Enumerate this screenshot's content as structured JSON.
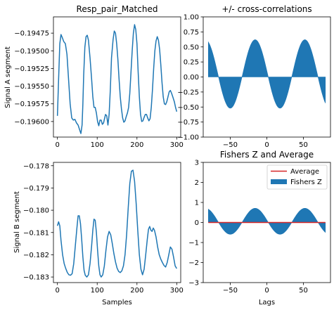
{
  "chart_data": [
    {
      "panel": "top-left",
      "type": "line",
      "title": "Resp_pair_Matched",
      "xlabel": "",
      "ylabel": "Signal A segment",
      "xlim": [
        -10,
        310
      ],
      "ylim": [
        -0.19622,
        -0.19452
      ],
      "xticks": [
        0,
        100,
        200,
        300
      ],
      "yticks": [
        -0.19475,
        -0.195,
        -0.19525,
        -0.1955,
        -0.19575,
        -0.196
      ],
      "ytick_labels": [
        "−0.19475",
        "−0.19500",
        "−0.19525",
        "−0.19550",
        "−0.19575",
        "−0.19600"
      ],
      "grid": false,
      "series": [
        {
          "color": "#1f77b4",
          "points": [
            [
              0,
              -0.19592
            ],
            [
              3,
              -0.1954
            ],
            [
              6,
              -0.1949
            ],
            [
              9,
              -0.19477
            ],
            [
              12,
              -0.19481
            ],
            [
              16,
              -0.19487
            ],
            [
              20,
              -0.1949
            ],
            [
              24,
              -0.19505
            ],
            [
              28,
              -0.1954
            ],
            [
              32,
              -0.19575
            ],
            [
              36,
              -0.19595
            ],
            [
              40,
              -0.19598
            ],
            [
              44,
              -0.19597
            ],
            [
              48,
              -0.19602
            ],
            [
              52,
              -0.19605
            ],
            [
              56,
              -0.19612
            ],
            [
              59,
              -0.19617
            ],
            [
              62,
              -0.19605
            ],
            [
              64,
              -0.19575
            ],
            [
              66,
              -0.19535
            ],
            [
              69,
              -0.19495
            ],
            [
              72,
              -0.1948
            ],
            [
              75,
              -0.19478
            ],
            [
              78,
              -0.19485
            ],
            [
              82,
              -0.1951
            ],
            [
              86,
              -0.1954
            ],
            [
              89,
              -0.19565
            ],
            [
              92,
              -0.1958
            ],
            [
              95,
              -0.1958
            ],
            [
              98,
              -0.19588
            ],
            [
              101,
              -0.196
            ],
            [
              104,
              -0.19606
            ],
            [
              107,
              -0.19598
            ],
            [
              110,
              -0.19598
            ],
            [
              113,
              -0.19604
            ],
            [
              116,
              -0.19602
            ],
            [
              118,
              -0.19597
            ],
            [
              121,
              -0.1959
            ],
            [
              124,
              -0.19592
            ],
            [
              127,
              -0.19605
            ],
            [
              130,
              -0.1959
            ],
            [
              133,
              -0.19555
            ],
            [
              136,
              -0.1951
            ],
            [
              140,
              -0.19484
            ],
            [
              143,
              -0.19472
            ],
            [
              146,
              -0.19475
            ],
            [
              149,
              -0.1949
            ],
            [
              152,
              -0.19512
            ],
            [
              155,
              -0.1954
            ],
            [
              158,
              -0.19565
            ],
            [
              161,
              -0.19582
            ],
            [
              164,
              -0.19595
            ],
            [
              167,
              -0.19601
            ],
            [
              170,
              -0.19599
            ],
            [
              173,
              -0.19593
            ],
            [
              176,
              -0.19588
            ],
            [
              179,
              -0.1958
            ],
            [
              182,
              -0.1956
            ],
            [
              185,
              -0.1953
            ],
            [
              188,
              -0.195
            ],
            [
              191,
              -0.19475
            ],
            [
              194,
              -0.19463
            ],
            [
              197,
              -0.1947
            ],
            [
              200,
              -0.1949
            ],
            [
              203,
              -0.1953
            ],
            [
              206,
              -0.19565
            ],
            [
              209,
              -0.1959
            ],
            [
              212,
              -0.196
            ],
            [
              215,
              -0.19599
            ],
            [
              218,
              -0.19594
            ],
            [
              221,
              -0.1959
            ],
            [
              224,
              -0.1959
            ],
            [
              227,
              -0.19595
            ],
            [
              230,
              -0.19599
            ],
            [
              233,
              -0.19596
            ],
            [
              236,
              -0.1958
            ],
            [
              239,
              -0.19555
            ],
            [
              242,
              -0.19525
            ],
            [
              245,
              -0.195
            ],
            [
              248,
              -0.19486
            ],
            [
              251,
              -0.1948
            ],
            [
              254,
              -0.19485
            ],
            [
              257,
              -0.19498
            ],
            [
              260,
              -0.1952
            ],
            [
              263,
              -0.19545
            ],
            [
              266,
              -0.19565
            ],
            [
              269,
              -0.19575
            ],
            [
              272,
              -0.19576
            ],
            [
              275,
              -0.19572
            ],
            [
              278,
              -0.19565
            ],
            [
              281,
              -0.19558
            ],
            [
              284,
              -0.19556
            ],
            [
              287,
              -0.1956
            ],
            [
              290,
              -0.19565
            ],
            [
              294,
              -0.19572
            ],
            [
              297,
              -0.1958
            ],
            [
              300,
              -0.19586
            ]
          ]
        }
      ]
    },
    {
      "panel": "top-right",
      "type": "area",
      "title": "+/- cross-correlations",
      "xlabel": "",
      "ylabel": "",
      "xlim": [
        -87,
        87
      ],
      "ylim": [
        -1.0,
        1.0
      ],
      "xticks": [
        -50,
        0,
        50
      ],
      "xtick_labels": [
        "−50",
        "0",
        "50"
      ],
      "yticks": [
        -1.0,
        -0.75,
        -0.5,
        -0.25,
        0.0,
        0.25,
        0.5,
        0.75,
        1.0
      ],
      "ytick_labels": [
        "−1.00",
        "−0.75",
        "−0.50",
        "−0.25",
        "0.00",
        "0.25",
        "0.50",
        "0.75",
        "1.00"
      ],
      "grid": false,
      "fill_color": "#1f77b4",
      "x_range": [
        -80,
        80
      ],
      "step": 1,
      "wave": {
        "amplitude": 0.57,
        "offset": 0.05,
        "period": 68,
        "phase_x": -16
      }
    },
    {
      "panel": "bottom-left",
      "type": "line",
      "title": "",
      "xlabel": "Samples",
      "ylabel": "Signal B segment",
      "xlim": [
        -10,
        310
      ],
      "ylim": [
        -0.18325,
        -0.17785
      ],
      "xticks": [
        0,
        100,
        200,
        300
      ],
      "yticks": [
        -0.178,
        -0.179,
        -0.18,
        -0.181,
        -0.182,
        -0.183
      ],
      "ytick_labels": [
        "−0.178",
        "−0.179",
        "−0.180",
        "−0.181",
        "−0.182",
        "−0.183"
      ],
      "grid": false,
      "series": [
        {
          "color": "#1f77b4",
          "points": [
            [
              0,
              -0.1807
            ],
            [
              3,
              -0.18052
            ],
            [
              6,
              -0.1807
            ],
            [
              9,
              -0.18135
            ],
            [
              13,
              -0.182
            ],
            [
              17,
              -0.1824
            ],
            [
              21,
              -0.18262
            ],
            [
              25,
              -0.1828
            ],
            [
              29,
              -0.1829
            ],
            [
              33,
              -0.18292
            ],
            [
              37,
              -0.18285
            ],
            [
              41,
              -0.1824
            ],
            [
              45,
              -0.1816
            ],
            [
              49,
              -0.1808
            ],
            [
              52,
              -0.18025
            ],
            [
              55,
              -0.18025
            ],
            [
              58,
              -0.1806
            ],
            [
              61,
              -0.1813
            ],
            [
              64,
              -0.1821
            ],
            [
              67,
              -0.1827
            ],
            [
              70,
              -0.18292
            ],
            [
              74,
              -0.183
            ],
            [
              78,
              -0.1829
            ],
            [
              82,
              -0.1824
            ],
            [
              86,
              -0.1816
            ],
            [
              89,
              -0.1809
            ],
            [
              92,
              -0.1804
            ],
            [
              95,
              -0.18045
            ],
            [
              98,
              -0.181
            ],
            [
              101,
              -0.1818
            ],
            [
              104,
              -0.1825
            ],
            [
              107,
              -0.1829
            ],
            [
              110,
              -0.183
            ],
            [
              114,
              -0.1829
            ],
            [
              118,
              -0.1825
            ],
            [
              122,
              -0.1818
            ],
            [
              126,
              -0.1812
            ],
            [
              130,
              -0.18095
            ],
            [
              134,
              -0.1811
            ],
            [
              138,
              -0.1815
            ],
            [
              142,
              -0.18195
            ],
            [
              146,
              -0.18232
            ],
            [
              150,
              -0.1826
            ],
            [
              154,
              -0.18275
            ],
            [
              158,
              -0.1828
            ],
            [
              162,
              -0.18272
            ],
            [
              166,
              -0.1825
            ],
            [
              170,
              -0.182
            ],
            [
              174,
              -0.1811
            ],
            [
              178,
              -0.1799
            ],
            [
              182,
              -0.1788
            ],
            [
              186,
              -0.17825
            ],
            [
              190,
              -0.1782
            ],
            [
              194,
              -0.1787
            ],
            [
              198,
              -0.1797
            ],
            [
              202,
              -0.1809
            ],
            [
              206,
              -0.182
            ],
            [
              210,
              -0.18265
            ],
            [
              214,
              -0.1829
            ],
            [
              218,
              -0.18265
            ],
            [
              222,
              -0.182
            ],
            [
              226,
              -0.1813
            ],
            [
              229,
              -0.18085
            ],
            [
              232,
              -0.18073
            ],
            [
              235,
              -0.1809
            ],
            [
              238,
              -0.18095
            ],
            [
              241,
              -0.1808
            ],
            [
              244,
              -0.1809
            ],
            [
              248,
              -0.1812
            ],
            [
              252,
              -0.18165
            ],
            [
              256,
              -0.182
            ],
            [
              260,
              -0.1822
            ],
            [
              264,
              -0.18235
            ],
            [
              268,
              -0.18248
            ],
            [
              272,
              -0.18255
            ],
            [
              276,
              -0.18235
            ],
            [
              280,
              -0.182
            ],
            [
              284,
              -0.18165
            ],
            [
              288,
              -0.18175
            ],
            [
              292,
              -0.1821
            ],
            [
              296,
              -0.1825
            ],
            [
              300,
              -0.18262
            ]
          ]
        }
      ]
    },
    {
      "panel": "bottom-right",
      "type": "area",
      "title": "Fishers Z and Average",
      "xlabel": "Lags",
      "ylabel": "",
      "xlim": [
        -87,
        87
      ],
      "ylim": [
        -3,
        3
      ],
      "xticks": [
        -50,
        0,
        50
      ],
      "xtick_labels": [
        "−50",
        "0",
        "50"
      ],
      "yticks": [
        -3,
        -2,
        -1,
        0,
        1,
        2,
        3
      ],
      "ytick_labels": [
        "−3",
        "−2",
        "−1",
        "0",
        "1",
        "2",
        "3"
      ],
      "grid": false,
      "fill_color": "#1f77b4",
      "x_range": [
        -80,
        80
      ],
      "step": 1,
      "wave": {
        "amplitude": 0.65,
        "offset": 0.06,
        "period": 68,
        "phase_x": -16
      },
      "average_line": {
        "y": 0.0,
        "color": "#d62728"
      },
      "legend": {
        "placement": "top-right",
        "entries": [
          {
            "label": "Average",
            "kind": "line",
            "color": "#d62728"
          },
          {
            "label": "Fishers Z",
            "kind": "patch",
            "color": "#1f77b4"
          }
        ]
      }
    }
  ]
}
